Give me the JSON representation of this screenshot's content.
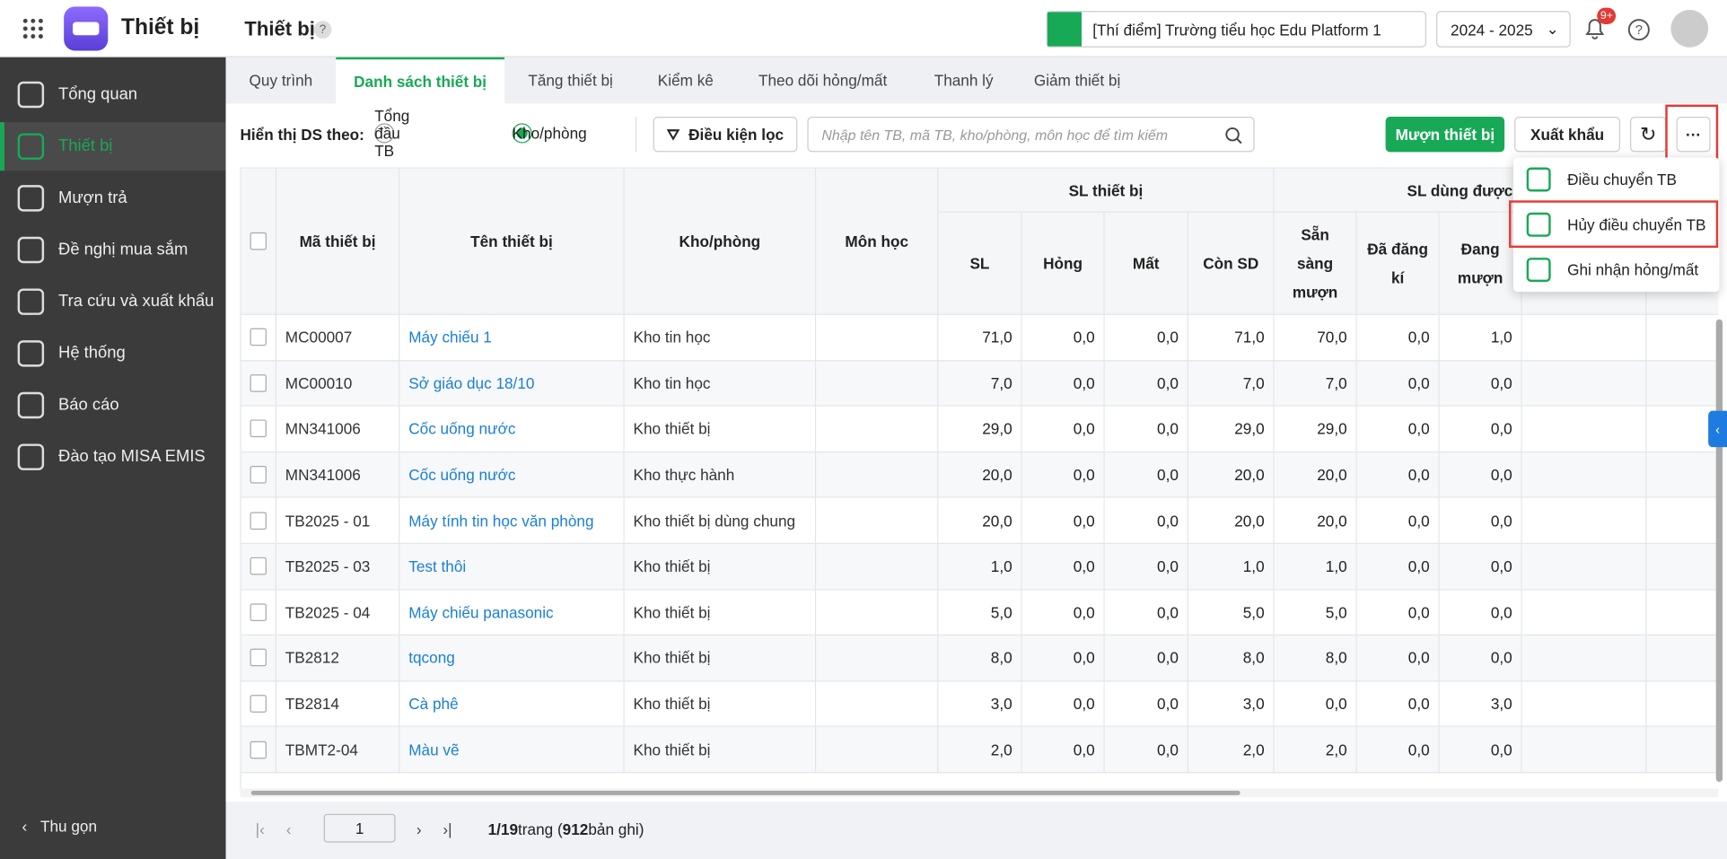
{
  "header": {
    "app_name": "Thiết bị",
    "page_title": "Thiết bị",
    "school": "[Thí điểm] Trường tiểu học Edu Platform 1",
    "year": "2024 - 2025",
    "badge": "9+"
  },
  "sidebar": {
    "items": [
      "Tổng quan",
      "Thiết bị",
      "Mượn trả",
      "Đề nghị mua sắm",
      "Tra cứu và xuất khẩu",
      "Hệ thống",
      "Báo cáo",
      "Đào tạo MISA EMIS"
    ],
    "active": 1,
    "collapse": "Thu gọn"
  },
  "tabs": {
    "items": [
      "Quy trình",
      "Danh sách thiết bị",
      "Tăng thiết bị",
      "Kiểm kê",
      "Theo dõi hỏng/mất",
      "Thanh lý",
      "Giảm thiết bị"
    ],
    "active": 1
  },
  "toolbar": {
    "display_label": "Hiển thị DS theo:",
    "options": [
      "Tổng đầu TB",
      "Kho/phòng"
    ],
    "selected": 1,
    "filter": "Điều kiện lọc",
    "search_placeholder": "Nhập tên TB, mã TB, kho/phòng, môn học để tìm kiếm",
    "borrow": "Mượn thiết bị",
    "export": "Xuất khẩu"
  },
  "table": {
    "columns": {
      "code": "Mã thiết bị",
      "name": "Tên thiết bị",
      "room": "Kho/phòng",
      "subject": "Môn học",
      "group_total": "SL thiết bị",
      "group_usable": "SL dùng được",
      "sl": "SL",
      "broken": "Hỏng",
      "lost": "Mất",
      "in_use": "Còn SD",
      "ready": "Sẵn sàng mượn",
      "registered": "Đã đăng kí",
      "borrowing": "Đang mượn"
    },
    "rows": [
      [
        "MC00007",
        "Máy chiếu 1",
        "Kho tin học",
        "71,0",
        "0,0",
        "0,0",
        "71,0",
        "70,0",
        "0,0",
        "1,0"
      ],
      [
        "MC00010",
        "Sở giáo dục 18/10",
        "Kho tin học",
        "7,0",
        "0,0",
        "0,0",
        "7,0",
        "7,0",
        "0,0",
        "0,0"
      ],
      [
        "MN341006",
        "Cốc uống nước",
        "Kho thiết bị",
        "29,0",
        "0,0",
        "0,0",
        "29,0",
        "29,0",
        "0,0",
        "0,0"
      ],
      [
        "MN341006",
        "Cốc uống nước",
        "Kho thực hành",
        "20,0",
        "0,0",
        "0,0",
        "20,0",
        "20,0",
        "0,0",
        "0,0"
      ],
      [
        "TB2025 - 01",
        "Máy tính tin học văn phòng",
        "Kho thiết bị dùng chung",
        "20,0",
        "0,0",
        "0,0",
        "20,0",
        "20,0",
        "0,0",
        "0,0"
      ],
      [
        "TB2025 - 03",
        "Test thôi",
        "Kho thiết bị",
        "1,0",
        "0,0",
        "0,0",
        "1,0",
        "1,0",
        "0,0",
        "0,0"
      ],
      [
        "TB2025 - 04",
        "Máy chiếu panasonic",
        "Kho thiết bị",
        "5,0",
        "0,0",
        "0,0",
        "5,0",
        "5,0",
        "0,0",
        "0,0"
      ],
      [
        "TB2812",
        "tqcong",
        "Kho thiết bị",
        "8,0",
        "0,0",
        "0,0",
        "8,0",
        "8,0",
        "0,0",
        "0,0"
      ],
      [
        "TB2814",
        "Cà phê",
        "Kho thiết bị",
        "3,0",
        "0,0",
        "0,0",
        "3,0",
        "0,0",
        "0,0",
        "3,0"
      ],
      [
        "TBMT2-04",
        "Màu vẽ",
        "Kho thiết bị",
        "2,0",
        "0,0",
        "0,0",
        "2,0",
        "2,0",
        "0,0",
        "0,0"
      ]
    ]
  },
  "menu": {
    "items": [
      "Điều chuyển TB",
      "Hủy điều chuyển TB",
      "Ghi nhận hỏng/mất"
    ]
  },
  "pagination": {
    "page_input": "1",
    "pages": "1/19",
    "pages_word": "trang (",
    "total": "912",
    "total_word": "bản ghi)"
  }
}
